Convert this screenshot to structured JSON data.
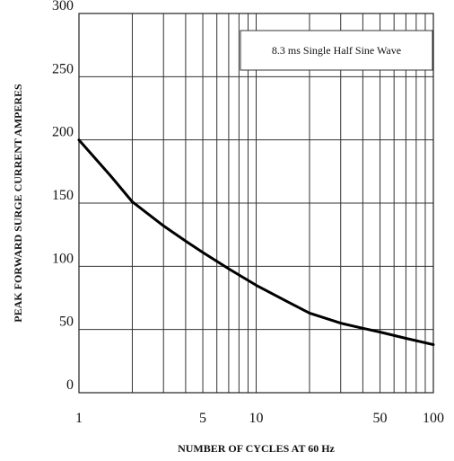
{
  "chart_data": {
    "type": "line",
    "xscale": "log",
    "xlim": [
      1,
      100
    ],
    "ylim": [
      0,
      300
    ],
    "xlabel": "NUMBER OF CYCLES AT 60 Hz",
    "ylabel": "PEAK FORWARD SURGE CURRENT AMPERES",
    "xticks": [
      1,
      5,
      10,
      50,
      100
    ],
    "xtick_labels": [
      "1",
      "5",
      "10",
      "50",
      "100"
    ],
    "yticks": [
      0,
      50,
      100,
      150,
      200,
      250,
      300
    ],
    "ytick_labels": [
      "0",
      "50",
      "100",
      "150",
      "200",
      "250",
      "300"
    ],
    "grid": true,
    "annotation": "8.3 ms Single Half Sine Wave",
    "annotation_position": "top-right",
    "series": [
      {
        "color": "#000000",
        "x": [
          1,
          1.5,
          2,
          3,
          4,
          5,
          7,
          10,
          15,
          20,
          30,
          40,
          50,
          70,
          100
        ],
        "y": [
          200,
          172,
          151,
          132,
          120,
          111,
          98,
          85,
          72,
          63,
          55,
          51,
          48,
          43,
          38
        ]
      }
    ]
  }
}
